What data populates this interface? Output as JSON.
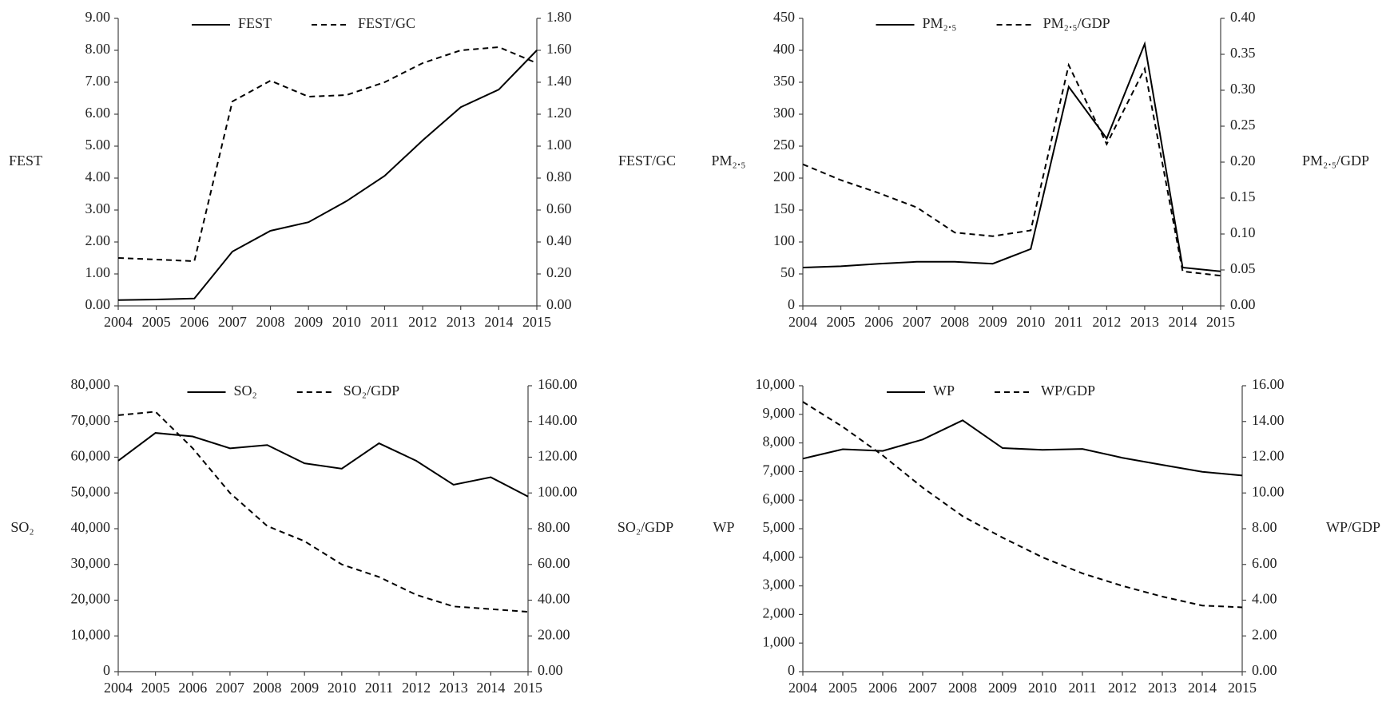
{
  "chart_data": [
    {
      "type": "line",
      "ylabel": "FEST",
      "y2label": "FEST/GC",
      "categories": [
        "2004",
        "2005",
        "2006",
        "2007",
        "2008",
        "2009",
        "2010",
        "2011",
        "2012",
        "2013",
        "2014",
        "2015"
      ],
      "series": [
        {
          "name": "FEST",
          "color": "#000000",
          "line_style": "solid",
          "values": [
            0.18,
            0.2,
            0.23,
            1.7,
            2.35,
            2.62,
            3.28,
            4.07,
            5.18,
            6.22,
            6.77,
            8.0
          ]
        },
        {
          "name": "FEST/GC",
          "color": "#000000",
          "line_style": "dashed",
          "axis": "y2",
          "values": [
            0.3,
            0.29,
            0.28,
            1.28,
            1.41,
            1.31,
            1.32,
            1.4,
            1.52,
            1.6,
            1.62,
            1.52
          ]
        }
      ],
      "ylim": [
        0,
        9
      ],
      "yticks": [
        {
          "value": 0,
          "label": "0.00"
        },
        {
          "value": 1,
          "label": "1.00"
        },
        {
          "value": 2,
          "label": "2.00"
        },
        {
          "value": 3,
          "label": "3.00"
        },
        {
          "value": 4,
          "label": "4.00"
        },
        {
          "value": 5,
          "label": "5.00"
        },
        {
          "value": 6,
          "label": "6.00"
        },
        {
          "value": 7,
          "label": "7.00"
        },
        {
          "value": 8,
          "label": "8.00"
        },
        {
          "value": 9,
          "label": "9.00"
        }
      ],
      "y2lim": [
        0,
        1.8
      ],
      "y2ticks": [
        {
          "value": 0,
          "label": "0.00"
        },
        {
          "value": 0.2,
          "label": "0.20"
        },
        {
          "value": 0.4,
          "label": "0.40"
        },
        {
          "value": 0.6,
          "label": "0.60"
        },
        {
          "value": 0.8,
          "label": "0.80"
        },
        {
          "value": 1,
          "label": "1.00"
        },
        {
          "value": 1.2,
          "label": "1.20"
        },
        {
          "value": 1.4,
          "label": "1.40"
        },
        {
          "value": 1.6,
          "label": "1.60"
        },
        {
          "value": 1.8,
          "label": "1.80"
        }
      ],
      "grid": false
    },
    {
      "type": "line",
      "ylabel": "PM₂.₅",
      "y2label": "PM₂.₅/GDP",
      "categories": [
        "2004",
        "2005",
        "2006",
        "2007",
        "2008",
        "2009",
        "2010",
        "2011",
        "2012",
        "2013",
        "2014",
        "2015"
      ],
      "series": [
        {
          "name": "PM₂.₅",
          "color": "#000000",
          "line_style": "solid",
          "values": [
            60,
            62,
            66,
            69,
            69,
            66,
            89,
            343,
            262,
            410,
            60,
            54
          ]
        },
        {
          "name": "PM₂.₅/GDP",
          "color": "#000000",
          "line_style": "dashed",
          "axis": "y2",
          "values": [
            0.197,
            0.175,
            0.157,
            0.137,
            0.102,
            0.097,
            0.105,
            0.335,
            0.225,
            0.33,
            0.048,
            0.042
          ]
        }
      ],
      "ylim": [
        0,
        450
      ],
      "yticks": [
        0,
        50,
        100,
        150,
        200,
        250,
        300,
        350,
        400,
        450
      ],
      "y2lim": [
        0,
        0.4
      ],
      "y2ticks": [
        {
          "value": 0,
          "label": "0.00"
        },
        {
          "value": 0.05,
          "label": "0.05"
        },
        {
          "value": 0.1,
          "label": "0.10"
        },
        {
          "value": 0.15,
          "label": "0.15"
        },
        {
          "value": 0.2,
          "label": "0.20"
        },
        {
          "value": 0.25,
          "label": "0.25"
        },
        {
          "value": 0.3,
          "label": "0.30"
        },
        {
          "value": 0.35,
          "label": "0.35"
        },
        {
          "value": 0.4,
          "label": "0.40"
        }
      ],
      "grid": false
    },
    {
      "type": "line",
      "ylabel": "SO₂",
      "y2label": "SO₂/GDP",
      "categories": [
        "2004",
        "2005",
        "2006",
        "2007",
        "2008",
        "2009",
        "2010",
        "2011",
        "2012",
        "2013",
        "2014",
        "2015"
      ],
      "series": [
        {
          "name": "SO₂",
          "color": "#000000",
          "line_style": "solid",
          "values": [
            59000,
            66800,
            65800,
            62500,
            63400,
            58300,
            56800,
            63900,
            59000,
            52300,
            54400,
            49000
          ]
        },
        {
          "name": "SO₂/GDP",
          "color": "#000000",
          "line_style": "dashed",
          "axis": "y2",
          "values": [
            143.5,
            145.5,
            125,
            100,
            81.5,
            73,
            60,
            53,
            43,
            36.5,
            35,
            33.5
          ]
        }
      ],
      "ylim": [
        0,
        80000
      ],
      "yticks": [
        0,
        {
          "value": 10000,
          "label": "10,000"
        },
        {
          "value": 20000,
          "label": "20,000"
        },
        {
          "value": 30000,
          "label": "30,000"
        },
        {
          "value": 40000,
          "label": "40,000"
        },
        {
          "value": 50000,
          "label": "50,000"
        },
        {
          "value": 60000,
          "label": "60,000"
        },
        {
          "value": 70000,
          "label": "70,000"
        },
        {
          "value": 80000,
          "label": "80,000"
        }
      ],
      "y2lim": [
        0,
        160
      ],
      "y2ticks": [
        {
          "value": 0,
          "label": "0.00"
        },
        {
          "value": 20,
          "label": "20.00"
        },
        {
          "value": 40,
          "label": "40.00"
        },
        {
          "value": 60,
          "label": "60.00"
        },
        {
          "value": 80,
          "label": "80.00"
        },
        {
          "value": 100,
          "label": "100.00"
        },
        {
          "value": 120,
          "label": "120.00"
        },
        {
          "value": 140,
          "label": "140.00"
        },
        {
          "value": 160,
          "label": "160.00"
        }
      ],
      "grid": false
    },
    {
      "type": "line",
      "ylabel": "WP",
      "y2label": "WP/GDP",
      "categories": [
        "2004",
        "2005",
        "2006",
        "2007",
        "2008",
        "2009",
        "2010",
        "2011",
        "2012",
        "2013",
        "2014",
        "2015"
      ],
      "series": [
        {
          "name": "WP",
          "color": "#000000",
          "line_style": "solid",
          "values": [
            7450,
            7780,
            7720,
            8120,
            8790,
            7820,
            7760,
            7790,
            7480,
            7230,
            6990,
            6860
          ]
        },
        {
          "name": "WP/GDP",
          "color": "#000000",
          "line_style": "dashed",
          "axis": "y2",
          "values": [
            15.1,
            13.7,
            12.1,
            10.3,
            8.7,
            7.5,
            6.4,
            5.5,
            4.8,
            4.2,
            3.7,
            3.6
          ]
        }
      ],
      "ylim": [
        0,
        10000
      ],
      "yticks": [
        0,
        {
          "value": 1000,
          "label": "1,000"
        },
        {
          "value": 2000,
          "label": "2,000"
        },
        {
          "value": 3000,
          "label": "3,000"
        },
        {
          "value": 4000,
          "label": "4,000"
        },
        {
          "value": 5000,
          "label": "5,000"
        },
        {
          "value": 6000,
          "label": "6,000"
        },
        {
          "value": 7000,
          "label": "7,000"
        },
        {
          "value": 8000,
          "label": "8,000"
        },
        {
          "value": 9000,
          "label": "9,000"
        },
        {
          "value": 10000,
          "label": "10,000"
        }
      ],
      "y2lim": [
        0,
        16
      ],
      "y2ticks": [
        {
          "value": 0,
          "label": "0.00"
        },
        {
          "value": 2,
          "label": "2.00"
        },
        {
          "value": 4,
          "label": "4.00"
        },
        {
          "value": 6,
          "label": "6.00"
        },
        {
          "value": 8,
          "label": "8.00"
        },
        {
          "value": 10,
          "label": "10.00"
        },
        {
          "value": 12,
          "label": "12.00"
        },
        {
          "value": 14,
          "label": "14.00"
        },
        {
          "value": 16,
          "label": "16.00"
        }
      ],
      "grid": false
    }
  ]
}
